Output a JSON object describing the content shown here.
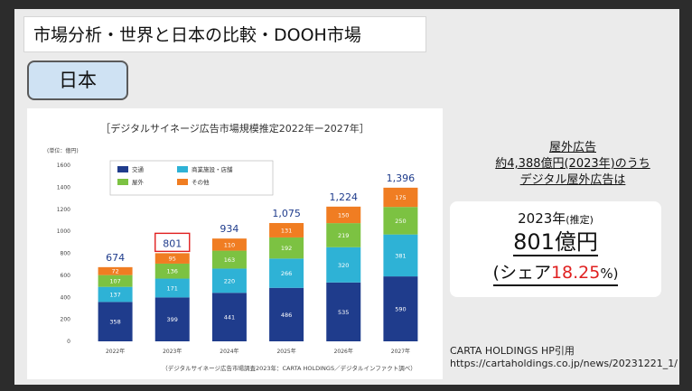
{
  "slide": {
    "title": "市場分析・世界と日本の比較・DOOH市場",
    "region": "日本"
  },
  "chart_data": {
    "type": "bar",
    "stacked": true,
    "title": "［デジタルサイネージ広告市場規模推定2022年ー2027年］",
    "unit_label": "(単位：億円)",
    "categories": [
      "2022年",
      "2023年",
      "2024年",
      "2025年",
      "2026年",
      "2027年"
    ],
    "series": [
      {
        "name": "交通",
        "color": "#1f3c8c",
        "values": [
          358,
          399,
          441,
          486,
          535,
          590
        ]
      },
      {
        "name": "商業施設・店舗",
        "color": "#2eb2d6",
        "values": [
          137,
          171,
          220,
          266,
          320,
          381
        ]
      },
      {
        "name": "屋外",
        "color": "#7cc242",
        "values": [
          107,
          136,
          163,
          192,
          219,
          250
        ]
      },
      {
        "name": "その他",
        "color": "#f07d22",
        "values": [
          72,
          95,
          110,
          131,
          150,
          175
        ]
      }
    ],
    "totals": [
      "674",
      "801",
      "934",
      "1,075",
      "1,224",
      "1,396"
    ],
    "highlight_index": 1,
    "highlight_color": "#e02020",
    "y_ticks": [
      "0",
      "200",
      "400",
      "600",
      "800",
      "1000",
      "1200",
      "1400",
      "1600"
    ],
    "ylim": [
      0,
      1600
    ],
    "legend_position": "top-left",
    "source": "（デジタルサイネージ広告市場調査2023年：CARTA HOLDINGS／デジタルインファクト調べ）"
  },
  "info": {
    "line1": "屋外広告",
    "line2": "約4,388億円(2023年)のうち",
    "line3": "デジタル屋外広告は",
    "year": "2023年",
    "year_note": "(推定)",
    "value": "801億円",
    "share_open": "(シェア",
    "share_value": "18.25",
    "share_close": "%)"
  },
  "citation": {
    "line1": "CARTA HOLDINGS HP引用",
    "line2": "https://cartaholdings.co.jp/news/20231221_1/"
  }
}
